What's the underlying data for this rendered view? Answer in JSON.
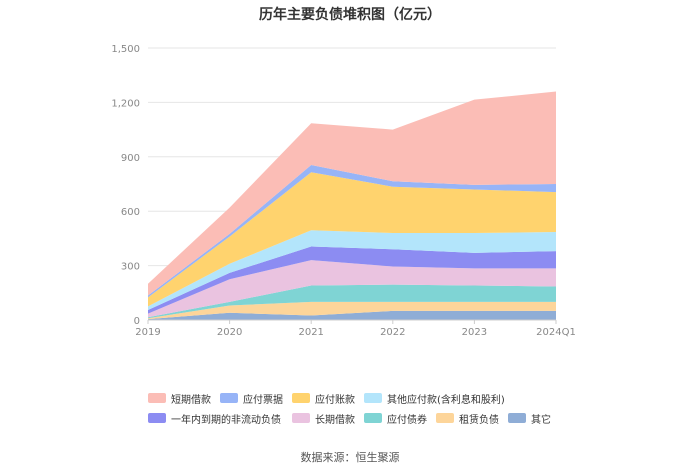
{
  "chart_data": {
    "type": "area",
    "stacked": true,
    "title": "历年主要负债堆积图（亿元）",
    "xlabel": "",
    "ylabel": "",
    "ylim": [
      0,
      1500
    ],
    "yticks": [
      "0",
      "300",
      "600",
      "900",
      "1,200",
      "1,500"
    ],
    "ytick_values": [
      0,
      300,
      600,
      900,
      1200,
      1500
    ],
    "categories": [
      "2019",
      "2020",
      "2021",
      "2022",
      "2023",
      "2024Q1"
    ],
    "series": [
      {
        "name": "其它",
        "color": "#8fadd6",
        "values": [
          5,
          40,
          25,
          50,
          50,
          50
        ]
      },
      {
        "name": "租赁负债",
        "color": "#fdd59a",
        "values": [
          5,
          40,
          75,
          50,
          50,
          50
        ]
      },
      {
        "name": "应付债券",
        "color": "#7fd4d4",
        "values": [
          5,
          20,
          90,
          95,
          90,
          85
        ]
      },
      {
        "name": "长期借款",
        "color": "#eac3e0",
        "values": [
          20,
          125,
          140,
          100,
          95,
          100
        ]
      },
      {
        "name": "一年内到期的非流动负债",
        "color": "#8c8cf2",
        "values": [
          20,
          35,
          75,
          95,
          85,
          95
        ]
      },
      {
        "name": "其他应付款(含利息和股利)",
        "color": "#b3e5fb",
        "values": [
          20,
          50,
          90,
          90,
          110,
          105
        ]
      },
      {
        "name": "应付账款",
        "color": "#ffd36e",
        "values": [
          50,
          150,
          320,
          255,
          240,
          220
        ]
      },
      {
        "name": "应付票据",
        "color": "#97b4f7",
        "values": [
          10,
          15,
          40,
          30,
          25,
          45
        ]
      },
      {
        "name": "短期借款",
        "color": "#fbbdb6",
        "values": [
          65,
          145,
          230,
          285,
          470,
          510
        ]
      }
    ]
  },
  "legend": {
    "row1": [
      "短期借款",
      "应付票据",
      "应付账款",
      "其他应付款(含利息和股利)"
    ],
    "row2": [
      "一年内到期的非流动负债",
      "长期借款",
      "应付债券",
      "租赁负债",
      "其它"
    ]
  },
  "source": "数据来源：恒生聚源"
}
